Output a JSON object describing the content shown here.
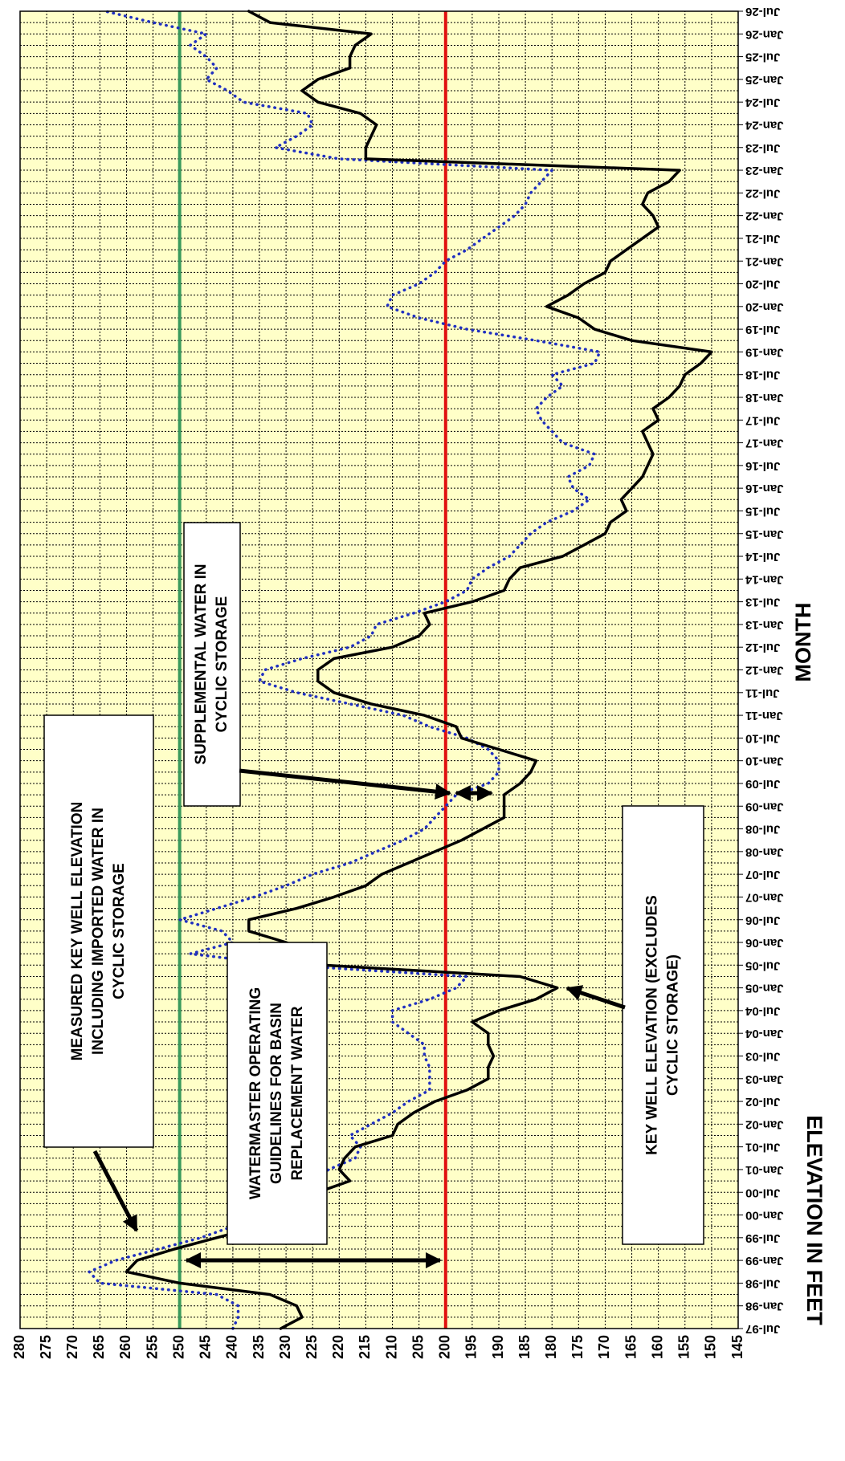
{
  "chart_data": {
    "type": "line",
    "xlabel": "MONTH",
    "ylabel": "ELEVATION IN FEET",
    "categories": [
      "Jul-97",
      null,
      "Jan-98",
      null,
      "Jul-98",
      null,
      "Jan-99",
      null,
      "Jul-99",
      null,
      "Jan-00",
      null,
      "Jul-00",
      null,
      "Jan-01",
      null,
      "Jul-01",
      null,
      "Jan-02",
      null,
      "Jul-02",
      null,
      "Jan-03",
      null,
      "Jul-03",
      null,
      "Jan-04",
      null,
      "Jul-04",
      null,
      "Jan-05",
      null,
      "Jul-05",
      null,
      "Jan-06",
      null,
      "Jul-06",
      null,
      "Jan-07",
      null,
      "Jul-07",
      null,
      "Jan-08",
      null,
      "Jul-08",
      null,
      "Jan-09",
      null,
      "Jul-09",
      null,
      "Jan-10",
      null,
      "Jul-10",
      null,
      "Jan-11",
      null,
      "Jul-11",
      null,
      "Jan-12",
      null,
      "Jul-12",
      null,
      "Jan-13",
      null,
      "Jul-13",
      null,
      "Jan-14",
      null,
      "Jul-14",
      null,
      "Jan-15",
      null,
      "Jul-15",
      null,
      "Jan-16",
      null,
      "Jul-16",
      null,
      "Jan-17",
      null,
      "Jul-17",
      null,
      "Jan-18",
      null,
      "Jul-18",
      null,
      "Jan-19",
      null,
      "Jul-19",
      null,
      "Jan-20",
      null,
      "Jul-20",
      null,
      "Jan-21",
      null,
      "Jul-21",
      null,
      "Jan-22",
      null,
      "Jul-22",
      null,
      "Jan-23",
      null,
      "Jul-23",
      null,
      "Jan-24",
      null,
      "Jul-24",
      null,
      "Jan-25",
      null,
      "Jul-25",
      null,
      "Jan-26",
      null,
      "Jul-26"
    ],
    "series": [
      {
        "color": "#1f2fc0",
        "style": "dotted",
        "values": [
          240,
          239,
          239,
          243,
          265,
          267,
          262,
          254,
          246,
          240,
          233,
          230,
          229,
          225,
          222,
          217,
          216,
          218,
          214,
          210,
          207,
          203,
          203,
          203,
          204,
          204,
          207,
          210,
          210,
          203,
          198,
          196,
          230,
          248,
          240,
          242,
          250,
          243,
          236,
          230,
          225,
          218,
          213,
          208,
          204,
          202,
          200,
          198,
          192,
          190,
          190,
          192,
          196,
          203,
          208,
          218,
          228,
          235,
          234,
          227,
          218,
          214,
          213,
          206,
          200,
          196,
          195,
          192,
          188,
          186,
          184,
          181,
          176,
          173,
          176,
          177,
          173,
          172,
          178,
          180,
          182,
          183,
          181,
          178,
          180,
          172,
          171,
          183,
          196,
          205,
          211,
          210,
          205,
          202,
          200,
          196,
          193,
          190,
          187,
          185,
          184,
          182,
          180,
          220,
          232,
          228,
          225,
          226,
          238,
          241,
          245,
          243,
          245,
          248,
          245,
          255,
          264
        ]
      },
      {
        "color": "#000000",
        "style": "solid",
        "values": [
          231,
          227,
          228,
          233,
          250,
          260,
          258,
          251,
          243,
          235,
          228,
          227,
          224,
          218,
          220,
          219,
          217,
          210,
          209,
          206,
          202,
          196,
          192,
          192,
          191,
          192,
          192,
          195,
          190,
          183,
          179,
          186,
          223,
          225,
          230,
          237,
          237,
          228,
          221,
          215,
          212,
          207,
          202,
          197,
          193,
          189,
          189,
          189,
          186,
          184,
          183,
          190,
          197,
          198,
          204,
          214,
          221,
          224,
          224,
          221,
          210,
          205,
          203,
          204,
          195,
          189,
          188,
          186,
          178,
          174,
          170,
          169,
          166,
          167,
          165,
          163,
          162,
          161,
          162,
          163,
          160,
          161,
          158,
          156,
          155,
          152,
          150,
          165,
          172,
          175,
          181,
          177,
          174,
          170,
          169,
          166,
          163,
          160,
          161,
          163,
          162,
          158,
          156,
          215,
          215,
          214,
          213,
          216,
          224,
          227,
          224,
          218,
          218,
          217,
          214,
          233,
          237
        ]
      }
    ],
    "ylim": [
      145,
      280
    ],
    "yticks": [
      145,
      150,
      155,
      160,
      165,
      170,
      175,
      180,
      185,
      190,
      195,
      200,
      205,
      210,
      215,
      220,
      225,
      230,
      235,
      240,
      245,
      250,
      255,
      260,
      265,
      270,
      275,
      280
    ],
    "grid": true,
    "background": "#ffffc8",
    "reference_lines": [
      {
        "value": 250,
        "color": "#3a9a5c"
      },
      {
        "value": 200,
        "color": "#e01010"
      }
    ],
    "annotations": [
      {
        "lines": [
          "MEASURED KEY WELL ELEVATION",
          "INCLUDING IMPORTED WATER IN",
          "CYCLIC STORAGE"
        ]
      },
      {
        "lines": [
          "WATERMASTER OPERATING",
          "GUIDELINES FOR BASIN",
          "REPLACEMENT WATER"
        ]
      },
      {
        "lines": [
          "SUPPLEMENTAL WATER IN",
          "CYCLIC STORAGE"
        ]
      },
      {
        "lines": [
          "KEY WELL ELEVATION (EXCLUDES",
          "CYCLIC STORAGE)"
        ]
      }
    ]
  }
}
